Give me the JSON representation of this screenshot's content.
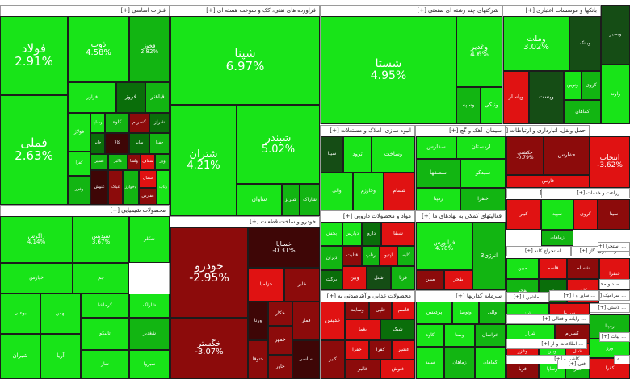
{
  "colors": {
    "bright": "#18e418",
    "mid": "#12b512",
    "dark": "#0a6e0a",
    "darker": "#154d15",
    "red": "#e01212",
    "darkred": "#8c0b0b",
    "maroon": "#3e0606"
  },
  "sectors": [
    {
      "id": "s1",
      "label": "فلزات اساسی [+]"
    },
    {
      "id": "s2",
      "label": "فراورده های نفتی، کک و سوخت هسته ای [+]"
    },
    {
      "id": "s3",
      "label": "شرکتهای چند رشته ای صنعتی [+]"
    },
    {
      "id": "s4",
      "label": "بانکها و موسسات اعتباری [+]"
    },
    {
      "id": "s5",
      "label": "انبوه سازی، املاک و مستغلات [+]"
    },
    {
      "id": "s6",
      "label": "سیمان، آهک و گچ [+]"
    },
    {
      "id": "s7",
      "label": "حمل ونقل، انبارداری و ارتباطات [+]"
    },
    {
      "id": "s8",
      "label": "محصولات شیمیایی [+]"
    },
    {
      "id": "s9",
      "label": "خودرو و ساخت قطعات [+]"
    },
    {
      "id": "s10",
      "label": "مواد و محصولات دارویی [+]"
    },
    {
      "id": "s11",
      "label": "فعالیتهای کمکی به نهادهای ما [+]"
    },
    {
      "id": "s12",
      "label": "محصولات غذایی و آشامیدنی به [+]"
    },
    {
      "id": "s13",
      "label": "سرمایه گذاریها [+]"
    }
  ],
  "tiles": {
    "folad": {
      "name": "فولاد",
      "pct": "2.91%"
    },
    "femeli": {
      "name": "فملی",
      "pct": "2.63%"
    },
    "zob": {
      "name": "ذوب",
      "pct": "4.58%"
    },
    "fakhooz": {
      "name": "فخوز",
      "pct": "2.82%"
    },
    "shapna": {
      "name": "شپنا",
      "pct": "6.97%"
    },
    "shatran": {
      "name": "شتران",
      "pct": "4.21%"
    },
    "shabandar": {
      "name": "شبندر",
      "pct": "5.02%"
    },
    "shasta": {
      "name": "شستا",
      "pct": "4.95%"
    },
    "vaghadir": {
      "name": "وغدیر",
      "pct": "4.6%"
    },
    "vamelat": {
      "name": "وملت",
      "pct": "3.02%"
    },
    "vapasar": {
      "name": "وپاسار"
    },
    "khodro": {
      "name": "خودرو",
      "pct": "-2.95%"
    },
    "khesapa": {
      "name": "خساپا",
      "pct": "-0.31%"
    },
    "khegostar": {
      "name": "خگستر",
      "pct": "-3.07%"
    },
    "zagros": {
      "name": "زاگرس",
      "pct": "4.14%"
    },
    "shapdis": {
      "name": "شپدیس",
      "pct": "3.67%"
    },
    "faraboors": {
      "name": "فرابورس",
      "pct": "4.78%"
    },
    "hakeshti": {
      "name": "حکشتی",
      "pct": "-0.79%"
    },
    "hafars": {
      "name": "حفارس"
    },
    "entekhab": {
      "name": "انتخاب",
      "pct": "-3.62%"
    },
    "fars": {
      "name": "فارس"
    },
    "kesoram": {
      "name": "کسرام"
    },
    "fameli": {
      "name": "فرآور"
    },
    "fabahonar": {
      "name": "فباهنر"
    },
    "foroz": {
      "name": "فروز"
    },
    "folazhaz": {
      "name": "فولاژ"
    },
    "kave": {
      "name": "کاوه"
    },
    "sharabi": {
      "name": "شراز"
    },
    "shavan": {
      "name": "شاوان"
    },
    "sharan": {
      "name": "شبریز"
    },
    "vasenat": {
      "name": "وصنعت"
    },
    "vakhaas": {
      "name": "وبانک"
    },
    "keshavar": {
      "name": "کشاورز"
    },
    "vakar": {
      "name": "وکار"
    },
    "khazar": {
      "name": "وخارزم"
    },
    "tarood": {
      "name": "ثرود"
    },
    "vsakht": {
      "name": "وساخت"
    },
    "ardestan": {
      "name": "اردستان"
    },
    "sefaars": {
      "name": "سفارس"
    },
    "sesfahan": {
      "name": "سصفها"
    },
    "sidako": {
      "name": "سیدکو"
    },
    "dparsi": {
      "name": "دپارس"
    },
    "daroo": {
      "name": "دارو"
    },
    "dalbor": {
      "name": "دیران"
    },
    "barkat": {
      "name": "برکت"
    },
    "pakhsh": {
      "name": "پخش"
    },
    "anrezh": {
      "name": "انرژی3"
    },
    "bahman": {
      "name": "بهمن"
    },
    "khepars": {
      "name": "خپارس"
    },
    "khzamia": {
      "name": "خزامیا"
    },
    "khaker": {
      "name": "خکار"
    },
    "vatna": {
      "name": "ورنا"
    },
    "khemhor": {
      "name": "خمهر"
    },
    "khtogha": {
      "name": "ختوقا"
    },
    "hafaz": {
      "name": "خاور"
    },
    "ghamel": {
      "name": "قمار"
    },
    "ghaneesh": {
      "name": "قثابت"
    },
    "ghdis": {
      "name": "غدیس"
    },
    "vsabet": {
      "name": "وسابت"
    },
    "vetozi": {
      "name": "وتوصا"
    },
    "vali": {
      "name": "والی"
    },
    "vsana": {
      "name": "وصنا"
    },
    "pardis": {
      "name": "پردیس"
    },
    "kaveh2": {
      "name": "کاوه"
    },
    "bookali": {
      "name": "بوعلی"
    },
    "shiran": {
      "name": "شیران"
    },
    "tapiko": {
      "name": "تاپیکو"
    },
    "aria": {
      "name": "آریا"
    },
    "karamat": {
      "name": "کرماشا"
    },
    "sharak": {
      "name": "شاراک"
    },
    "shaghdir": {
      "name": "شغدیر"
    },
    "venkon": {
      "name": "ونیکی"
    },
    "jam": {
      "name": "جم"
    },
    "shekhar": {
      "name": "شکلر"
    },
    "vebank": {
      "name": "وبانک"
    },
    "vekolor": {
      "name": "ونوین"
    },
    "vsepah": {
      "name": "وسپه"
    },
    "vpost": {
      "name": "وپست"
    },
    "khamahan": {
      "name": "کماهان"
    },
    "kromit": {
      "name": "کروی"
    },
    "sarayan": {
      "name": "خراسان"
    },
    "sepid": {
      "name": "سپید"
    },
    "zamhan": {
      "name": "زماهان"
    },
    "moobin": {
      "name": "مبین"
    },
    "bafhr": {
      "name": "بفجر"
    },
    "ghalpi": {
      "name": "قلپی"
    },
    "ghasd": {
      "name": "قاسم"
    },
    "rampena": {
      "name": "رمپنا"
    },
    "kabir": {
      "name": "کبیر"
    },
    "sina": {
      "name": "سینا"
    },
    "shasam": {
      "name": "شسام"
    },
    "khenfra": {
      "name": "خنفرا"
    },
    "rtapak": {
      "name": "رتاپ"
    },
    "aptiva": {
      "name": "اپتیو"
    },
    "sebz": {
      "name": "سبزوا"
    },
    "kalbe": {
      "name": "کلبه"
    },
    "shaz": {
      "name": "شاز"
    },
    "hafra": {
      "name": "حفرا"
    },
    "kafra": {
      "name": "کفرا"
    },
    "vaben": {
      "name": "وبین"
    },
    "shanel": {
      "name": "شنل"
    },
    "farba": {
      "name": "فربا"
    },
    "vasapa": {
      "name": "وساپا"
    },
    "khabar": {
      "name": "خابر"
    },
    "ghashir": {
      "name": "غشیر"
    },
    "ghalbor": {
      "name": "غالبر"
    },
    "vesanat": {
      "name": "ولسا"
    },
    "saafa": {
      "name": "سفاف"
    },
    "varaz": {
      "name": "ورز"
    },
    "vghazar": {
      "name": "وغزر"
    },
    "gh_nosh": {
      "name": "غنوش"
    },
    "gh_pak": {
      "name": "غپاک"
    },
    "kala": {
      "name": "کالا"
    },
    "vkhoram": {
      "name": "وخوارز"
    },
    "sh_s": {
      "name": "سایر"
    },
    "shmali": {
      "name": "شمال"
    },
    "hafarh": {
      "name": "غفارس"
    },
    "sh_rt": {
      "name": "رتاب"
    },
    "baghma": {
      "name": "بغما"
    },
    "shabk": {
      "name": "شبک"
    },
    "asasi": {
      "name": "اساسی"
    },
    "sh_tl": {
      "name": "شیفا"
    },
    "vabasir": {
      "name": "وبصیر"
    },
    "avand": {
      "name": "واوند"
    }
  },
  "small_sector_labels": {
    "l1": "... سایر محصولات [+]",
    "l2": "... زراعت و خدمات [+]",
    "l3": "... استخراج کانه [+]",
    "l4": "... عرضه برق، گاز [+]",
    "l5": "... صند و محصو [+]",
    "l6": "... سرامیک [+]",
    "l7": "... سایر و ا [+]",
    "l8": "... ماشین آ [+]",
    "l9": "... رایانه و فعالی [+]",
    "l10": "... اطلاعات و ار [+]",
    "l11": "... کاشی و [+]",
    "l12": "... استخرا [+]",
    "l13": "... لاستی [+]",
    "l14": "... نیات [+]",
    "l15": "فنی [+]",
    "l16": "... ه [+]"
  }
}
